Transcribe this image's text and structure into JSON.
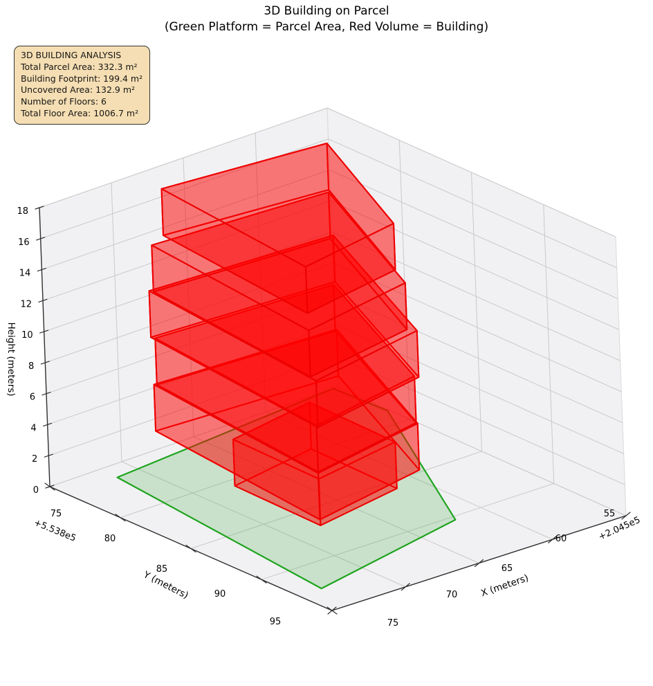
{
  "title": {
    "line1": "3D Building on Parcel",
    "line2": "(Green Platform = Parcel Area, Red Volume = Building)"
  },
  "info_box": {
    "lines": [
      "3D BUILDING ANALYSIS",
      "Total Parcel Area: 332.3 m²",
      "Building Footprint: 199.4 m²",
      "Uncovered Area: 132.9 m²",
      "Number of Floors: 6",
      "Total Floor Area: 1006.7 m²"
    ]
  },
  "axes": {
    "x": {
      "label": "X (meters)",
      "ticks": [
        "75",
        "70",
        "65",
        "60",
        "55"
      ],
      "offset_text": "+2.045e5",
      "data_offset": 204500,
      "range": [
        204555,
        204575
      ]
    },
    "y": {
      "label": "Y (meters)",
      "ticks": [
        "75",
        "80",
        "85",
        "90",
        "95"
      ],
      "offset_text": "+5.538e5",
      "data_offset": 553800,
      "range": [
        553875,
        553895
      ]
    },
    "z": {
      "label": "Height (meters)",
      "ticks": [
        "0",
        "2",
        "4",
        "6",
        "8",
        "10",
        "12",
        "14",
        "16",
        "18"
      ],
      "range": [
        0,
        18
      ]
    }
  },
  "chart_data": {
    "type": "3d-polygon-plot",
    "title": "3D Building on Parcel",
    "subtitle": "(Green Platform = Parcel Area, Red Volume = Building)",
    "legend_meaning": {
      "green_platform": "Parcel Area",
      "red_volume": "Building"
    },
    "analysis": {
      "total_parcel_area_m2": 332.3,
      "building_footprint_m2": 199.4,
      "uncovered_area_m2": 132.9,
      "number_of_floors": 6,
      "total_floor_area_m2": 1006.7
    },
    "floor_height_m": 3,
    "parcel_polygon_xy": [
      [
        204571.5,
        553876.2
      ],
      [
        204555.3,
        553875.0
      ],
      [
        204555.0,
        553878.5
      ],
      [
        204561.5,
        553889.8
      ],
      [
        204572.7,
        553891.7
      ]
    ],
    "building_floors": [
      {
        "z0": 0,
        "z1": 3,
        "footprint": [
          [
            204567.5,
            553880.4
          ],
          [
            204561.3,
            553879.5
          ],
          [
            204561.2,
            553885.4
          ],
          [
            204567.4,
            553886.3
          ]
        ]
      },
      {
        "z0": 3,
        "z1": 6,
        "footprint": [
          [
            204569.9,
            553877.4
          ],
          [
            204557.9,
            553878.1
          ],
          [
            204562.6,
            553888.5
          ],
          [
            204570.8,
            553889.8
          ]
        ]
      },
      {
        "z0": 6,
        "z1": 9,
        "footprint": [
          [
            204569.8,
            553877.5
          ],
          [
            204558.1,
            553878.2
          ],
          [
            204562.6,
            553888.4
          ],
          [
            204570.7,
            553889.7
          ]
        ]
      },
      {
        "z0": 9,
        "z1": 12,
        "footprint": [
          [
            204569.9,
            553877.3
          ],
          [
            204557.8,
            553878.0
          ],
          [
            204562.5,
            553888.6
          ],
          [
            204570.8,
            553889.9
          ]
        ]
      },
      {
        "z0": 12,
        "z1": 15,
        "footprint": [
          [
            204569.8,
            553877.5
          ],
          [
            204558.2,
            553878.2
          ],
          [
            204562.8,
            553888.2
          ],
          [
            204570.7,
            553889.4
          ]
        ]
      },
      {
        "z0": 15,
        "z1": 18,
        "footprint": [
          [
            204568.5,
            553877.0
          ],
          [
            204558.0,
            553878.0
          ],
          [
            204562.1,
            553886.8
          ],
          [
            204569.3,
            553887.9
          ]
        ]
      }
    ],
    "colors": {
      "building_edge": "#ee0000",
      "building_fill": "#ff0000",
      "building_fill_alpha": 0.3,
      "parcel_edge": "#1ea41e",
      "parcel_fill": "#3caa3c",
      "parcel_fill_alpha": 0.22,
      "pane": "#f1f1f3",
      "pane_edge": "#d9d9d9",
      "grid": "#c9c9c9",
      "spine": "#2f2f2f",
      "info_box_bg": "#f5deb3",
      "info_box_border": "#333333",
      "text": "#000000"
    },
    "grid": true,
    "view": "matplotlib 3d, z vertical, perspective-like"
  }
}
